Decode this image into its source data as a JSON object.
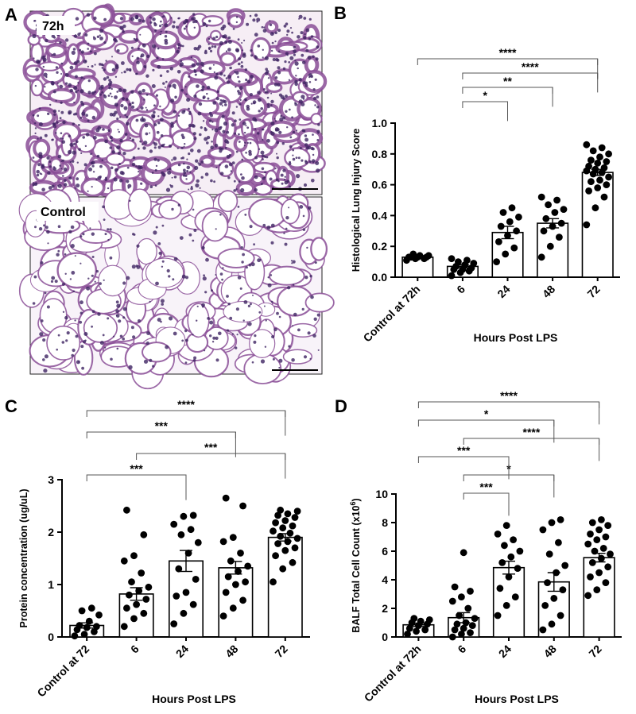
{
  "panel_labels": {
    "a": "A",
    "b": "B",
    "c": "C",
    "d": "D"
  },
  "micrographs": {
    "top_label": "72h",
    "bottom_label": "Control",
    "colors": {
      "tissue": "#8a4e96",
      "nuclei": "#3e2463",
      "bg": "#ffffff",
      "top_bg": "#f6eef5",
      "bottom_bg": "#f8f3f9"
    }
  },
  "colors": {
    "bar_fill": "#ffffff",
    "bar_stroke": "#000000",
    "point": "#000000"
  },
  "chart_data": [
    {
      "id": "B",
      "type": "bar",
      "xlabel": "Hours Post LPS",
      "ylabel": "Histological Lung Injury Score",
      "ylim": [
        0,
        1.0
      ],
      "yticks": [
        "0.0",
        "0.2",
        "0.4",
        "0.6",
        "0.8",
        "1.0"
      ],
      "yticks_values": [
        0,
        0.2,
        0.4,
        0.6,
        0.8,
        1.0
      ],
      "categories": [
        "Control at 72h",
        "6",
        "24",
        "48",
        "72"
      ],
      "values": [
        0.13,
        0.07,
        0.29,
        0.35,
        0.68
      ],
      "sem": [
        0.01,
        0.01,
        0.04,
        0.03,
        0.02
      ],
      "points": [
        [
          0.11,
          0.12,
          0.12,
          0.13,
          0.13,
          0.13,
          0.13,
          0.14,
          0.14,
          0.15
        ],
        [
          0.01,
          0.03,
          0.04,
          0.05,
          0.05,
          0.06,
          0.07,
          0.08,
          0.09,
          0.1,
          0.11,
          0.12
        ],
        [
          0.1,
          0.15,
          0.19,
          0.23,
          0.27,
          0.3,
          0.33,
          0.36,
          0.39,
          0.42,
          0.45
        ],
        [
          0.13,
          0.2,
          0.26,
          0.3,
          0.33,
          0.35,
          0.38,
          0.42,
          0.44,
          0.47,
          0.5,
          0.52
        ],
        [
          0.34,
          0.45,
          0.52,
          0.56,
          0.58,
          0.6,
          0.62,
          0.63,
          0.65,
          0.67,
          0.68,
          0.69,
          0.7,
          0.71,
          0.72,
          0.74,
          0.75,
          0.76,
          0.78,
          0.8,
          0.82,
          0.84,
          0.86
        ]
      ],
      "brackets": [
        {
          "from": 1,
          "to": 2,
          "label": "*"
        },
        {
          "from": 1,
          "to": 3,
          "label": "**"
        },
        {
          "from": 1,
          "to": 4,
          "label": "****"
        },
        {
          "from": 0,
          "to": 4,
          "label": "****"
        }
      ]
    },
    {
      "id": "C",
      "type": "bar",
      "xlabel": "Hours Post LPS",
      "ylabel": "Protein concentration (ug/uL)",
      "ylim": [
        0,
        3
      ],
      "yticks": [
        "0",
        "1",
        "2",
        "3"
      ],
      "yticks_values": [
        0,
        1,
        2,
        3
      ],
      "categories": [
        "Control at 72",
        "6",
        "24",
        "48",
        "72"
      ],
      "values": [
        0.22,
        0.82,
        1.45,
        1.32,
        1.9
      ],
      "sem": [
        0.05,
        0.12,
        0.2,
        0.12,
        0.07
      ],
      "points": [
        [
          0.02,
          0.05,
          0.1,
          0.14,
          0.18,
          0.2,
          0.22,
          0.3,
          0.42,
          0.5,
          0.55
        ],
        [
          0.2,
          0.35,
          0.45,
          0.55,
          0.62,
          0.72,
          0.8,
          0.88,
          0.95,
          1.05,
          1.22,
          1.45,
          1.55,
          1.95,
          2.42
        ],
        [
          0.25,
          0.45,
          0.62,
          0.78,
          0.85,
          1.1,
          1.3,
          1.6,
          1.8,
          1.95,
          2.05,
          2.15,
          2.3,
          2.32
        ],
        [
          0.4,
          0.55,
          0.7,
          0.85,
          1.0,
          1.05,
          1.15,
          1.25,
          1.35,
          1.45,
          1.6,
          1.82,
          1.9,
          2.5,
          2.65
        ],
        [
          1.05,
          1.3,
          1.42,
          1.55,
          1.65,
          1.7,
          1.78,
          1.82,
          1.88,
          1.92,
          1.98,
          2.02,
          2.08,
          2.12,
          2.18,
          2.22,
          2.28,
          2.32,
          2.35,
          2.4,
          2.42
        ]
      ],
      "brackets": [
        {
          "from": 0,
          "to": 2,
          "label": "***"
        },
        {
          "from": 1,
          "to": 4,
          "label": "***"
        },
        {
          "from": 0,
          "to": 3,
          "label": "***"
        },
        {
          "from": 0,
          "to": 4,
          "label": "****"
        }
      ]
    },
    {
      "id": "D",
      "type": "bar",
      "xlabel": "Hours Post LPS",
      "ylabel": "BALF Total Cell Count (x10",
      "ylabel_sup": "6",
      "ylabel_end": ")",
      "ylim": [
        0,
        10
      ],
      "yticks": [
        "0",
        "2",
        "4",
        "6",
        "8",
        "10"
      ],
      "yticks_values": [
        0,
        2,
        4,
        6,
        8,
        10
      ],
      "categories": [
        "Control at 72h",
        "6",
        "24",
        "48",
        "72"
      ],
      "values": [
        0.85,
        1.35,
        4.85,
        3.85,
        5.55
      ],
      "sem": [
        0.12,
        0.35,
        0.45,
        0.65,
        0.3
      ],
      "points": [
        [
          0.2,
          0.4,
          0.5,
          0.6,
          0.8,
          0.9,
          1.0,
          1.1,
          1.2,
          1.3
        ],
        [
          0.0,
          0.2,
          0.3,
          0.5,
          0.6,
          0.8,
          0.9,
          1.0,
          1.3,
          1.5,
          2.0,
          2.5,
          2.8,
          3.2,
          3.5,
          5.9
        ],
        [
          1.5,
          2.2,
          2.8,
          3.4,
          4.2,
          4.8,
          5.2,
          5.6,
          6.0,
          6.4,
          6.8,
          7.2,
          7.8
        ],
        [
          0.5,
          0.9,
          1.5,
          2.2,
          2.7,
          3.3,
          3.8,
          4.5,
          5.0,
          5.8,
          6.6,
          7.5,
          8.0,
          8.2
        ],
        [
          2.9,
          3.3,
          3.8,
          4.2,
          4.5,
          4.9,
          5.2,
          5.5,
          5.8,
          6.0,
          6.2,
          6.5,
          6.8,
          7.0,
          7.2,
          7.5,
          7.8,
          8.0,
          8.2
        ]
      ],
      "brackets": [
        {
          "from": 1,
          "to": 2,
          "label": "***"
        },
        {
          "from": 1,
          "to": 3,
          "label": "*"
        },
        {
          "from": 0,
          "to": 2,
          "label": "***"
        },
        {
          "from": 1,
          "to": 4,
          "label": "****"
        },
        {
          "from": 0,
          "to": 3,
          "label": "*"
        },
        {
          "from": 0,
          "to": 4,
          "label": "****"
        }
      ]
    }
  ]
}
